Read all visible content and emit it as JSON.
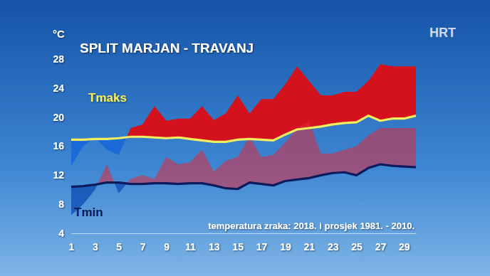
{
  "chart_data": {
    "type": "area",
    "title": "SPLIT MARJAN - TRAVANJ",
    "y_label": "°C",
    "annotations": [
      {
        "text": "temperatura zraka: 2018. i prosjek 1981. - 2010."
      },
      {
        "text": "HRT"
      }
    ],
    "x": [
      1,
      2,
      3,
      4,
      5,
      6,
      7,
      8,
      9,
      10,
      11,
      12,
      13,
      14,
      15,
      16,
      17,
      18,
      19,
      20,
      21,
      22,
      23,
      24,
      25,
      26,
      27,
      28,
      29,
      30
    ],
    "xlim": [
      1,
      30
    ],
    "xticks": [
      1,
      3,
      5,
      7,
      9,
      11,
      13,
      15,
      17,
      19,
      21,
      23,
      25,
      27,
      29
    ],
    "ylim": [
      4,
      28
    ],
    "yticks": [
      4,
      8,
      12,
      16,
      20,
      24,
      28
    ],
    "grid": false,
    "series": [
      {
        "name": "Tmaks",
        "color": "#f3ee5e",
        "values": [
          16.9,
          16.9,
          17.0,
          17.0,
          17.1,
          17.3,
          17.3,
          17.2,
          17.1,
          17.2,
          17.0,
          16.8,
          16.6,
          16.6,
          16.9,
          17.0,
          16.9,
          16.8,
          17.6,
          18.3,
          18.5,
          18.7,
          19.0,
          19.2,
          19.3,
          20.2,
          19.5,
          19.8,
          19.8,
          20.2
        ],
        "values_2018": [
          13.3,
          16.0,
          17.2,
          15.5,
          14.8,
          18.5,
          19.0,
          21.5,
          19.5,
          19.8,
          19.8,
          21.5,
          19.6,
          20.5,
          23.0,
          20.5,
          22.5,
          22.5,
          24.5,
          27.0,
          25.0,
          23.0,
          23.0,
          23.5,
          23.5,
          25.0,
          27.3,
          27.0,
          27.0,
          27.0
        ]
      },
      {
        "name": "Tmin",
        "color": "#0d1a5c",
        "values": [
          10.4,
          10.5,
          10.7,
          11.0,
          11.0,
          10.8,
          10.8,
          10.9,
          10.9,
          10.8,
          10.9,
          10.9,
          10.6,
          10.2,
          10.1,
          11.0,
          10.8,
          10.6,
          11.2,
          11.4,
          11.6,
          12.0,
          12.3,
          12.4,
          12.0,
          13.0,
          13.5,
          13.3,
          13.2,
          13.1
        ],
        "values_2018": [
          6.5,
          8.0,
          10.0,
          13.5,
          9.5,
          11.5,
          12.0,
          11.5,
          14.5,
          13.5,
          13.8,
          15.5,
          12.5,
          14.0,
          14.5,
          17.3,
          14.5,
          14.8,
          16.5,
          18.5,
          19.5,
          15.0,
          15.0,
          15.5,
          16.0,
          17.5,
          18.5,
          18.5,
          18.5,
          18.5
        ]
      }
    ]
  }
}
